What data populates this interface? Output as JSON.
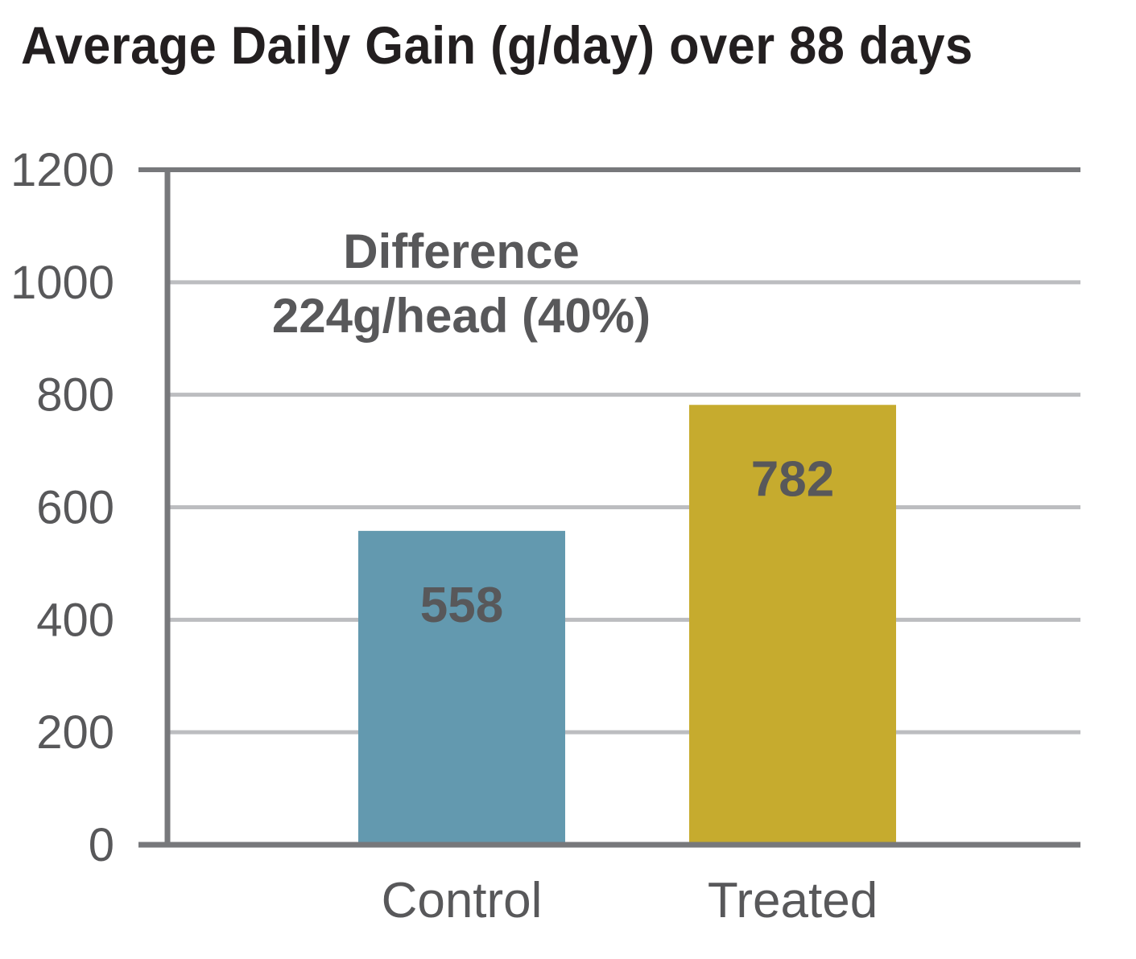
{
  "chart_data": {
    "type": "bar",
    "title": "Average Daily Gain (g/day) over 88 days",
    "categories": [
      "Control",
      "Treated"
    ],
    "values": [
      558,
      782
    ],
    "data_labels": [
      "558",
      "782"
    ],
    "bar_colors": [
      "#6399af",
      "#c6ab2e"
    ],
    "ylim": [
      0,
      1200
    ],
    "yticks": [
      0,
      200,
      400,
      600,
      800,
      1000,
      1200
    ],
    "grid": true,
    "legend": "none",
    "annotation": {
      "line1": "Difference",
      "line2": "224g/head (40%)"
    }
  },
  "colors": {
    "axis": "#77787b",
    "grid": "#bcbdc0",
    "text": "#58585a",
    "title": "#231f20"
  }
}
